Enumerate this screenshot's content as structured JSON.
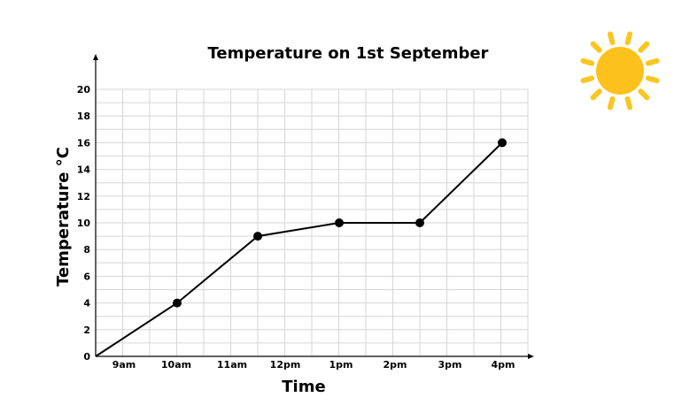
{
  "chart_data": {
    "type": "line",
    "title": "Temperature on 1st September",
    "xlabel": "Time",
    "ylabel": "Temperature °C",
    "categories": [
      "9am",
      "10am",
      "11am",
      "12pm",
      "1pm",
      "2pm",
      "3pm",
      "4pm"
    ],
    "yticks": [
      0,
      2,
      4,
      6,
      8,
      10,
      12,
      14,
      16,
      18,
      20
    ],
    "ylim": [
      0,
      20
    ],
    "grid": true,
    "series": [
      {
        "x": [
          "",
          "10am",
          "11:30am",
          "1pm",
          "2:30pm",
          "4pm"
        ],
        "values": [
          0,
          4,
          9,
          10,
          10,
          16
        ]
      }
    ],
    "decoration": "sun-icon"
  }
}
